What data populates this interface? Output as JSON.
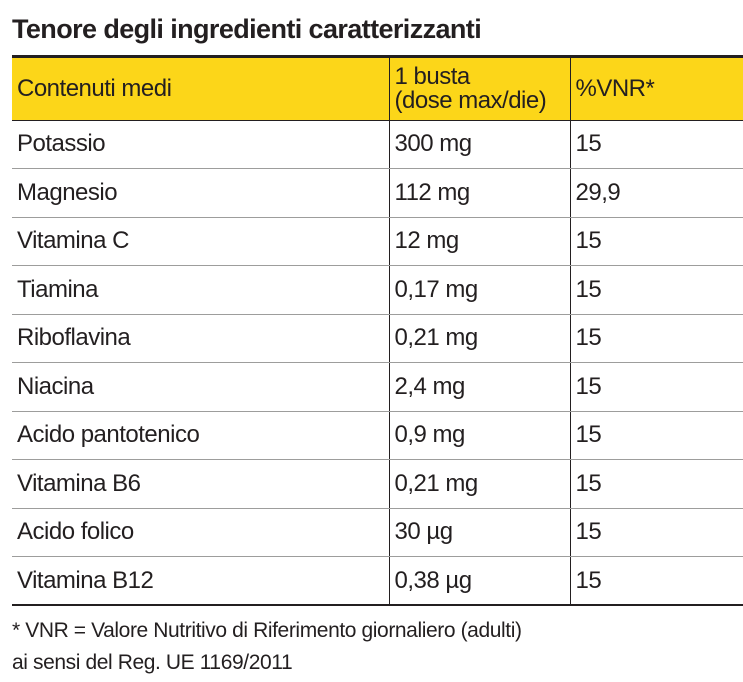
{
  "title": "Tenore degli ingredienti caratterizzanti",
  "table": {
    "headers": {
      "col1": "Contenuti medi",
      "col2_line1": "1 busta",
      "col2_line2": "(dose max/die)",
      "col3": "%VNR*"
    },
    "rows": [
      {
        "name": "Potassio",
        "amount": "300 mg",
        "vnr": "15"
      },
      {
        "name": "Magnesio",
        "amount": "112 mg",
        "vnr": "29,9"
      },
      {
        "name": "Vitamina C",
        "amount": "12 mg",
        "vnr": "15"
      },
      {
        "name": "Tiamina",
        "amount": "0,17 mg",
        "vnr": "15"
      },
      {
        "name": "Riboflavina",
        "amount": "0,21 mg",
        "vnr": "15"
      },
      {
        "name": "Niacina",
        "amount": "2,4 mg",
        "vnr": "15"
      },
      {
        "name": "Acido pantotenico",
        "amount": "0,9 mg",
        "vnr": "15"
      },
      {
        "name": "Vitamina B6",
        "amount": "0,21 mg",
        "vnr": "15"
      },
      {
        "name": "Acido folico",
        "amount": "30 µg",
        "vnr": "15"
      },
      {
        "name": "Vitamina B12",
        "amount": "0,38 µg",
        "vnr": "15"
      }
    ]
  },
  "footnote": {
    "line1": "* VNR = Valore Nutritivo di Riferimento giornaliero (adulti)",
    "line2": "ai sensi del Reg. UE 1169/2011"
  },
  "colors": {
    "header_bg": "#fcd619",
    "text": "#231f20",
    "row_divider": "#9d9d9c"
  }
}
